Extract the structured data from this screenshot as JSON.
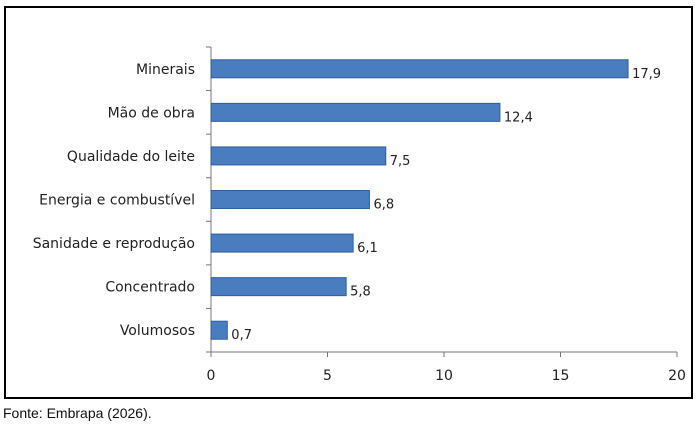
{
  "source_note": "Fonte: Embrapa (2026).",
  "chart_data": {
    "type": "bar",
    "orientation": "horizontal",
    "categories": [
      "Minerais",
      "Mão de obra",
      "Qualidade do leite",
      "Energia e combustível",
      "Sanidade e reprodução",
      "Concentrado",
      "Volumosos"
    ],
    "values": [
      17.9,
      12.4,
      7.5,
      6.8,
      6.1,
      5.8,
      0.7
    ],
    "value_labels": [
      "17,9",
      "12,4",
      "7,5",
      "6,8",
      "6,1",
      "5,8",
      "0,7"
    ],
    "x_ticks": [
      "0",
      "5",
      "10",
      "15",
      "20"
    ],
    "xlim": [
      0,
      20
    ],
    "grid": false,
    "bar_color": "#4a7cc0",
    "bar_border_color": "#2e5f9e",
    "title": "",
    "xlabel": "",
    "ylabel": ""
  }
}
